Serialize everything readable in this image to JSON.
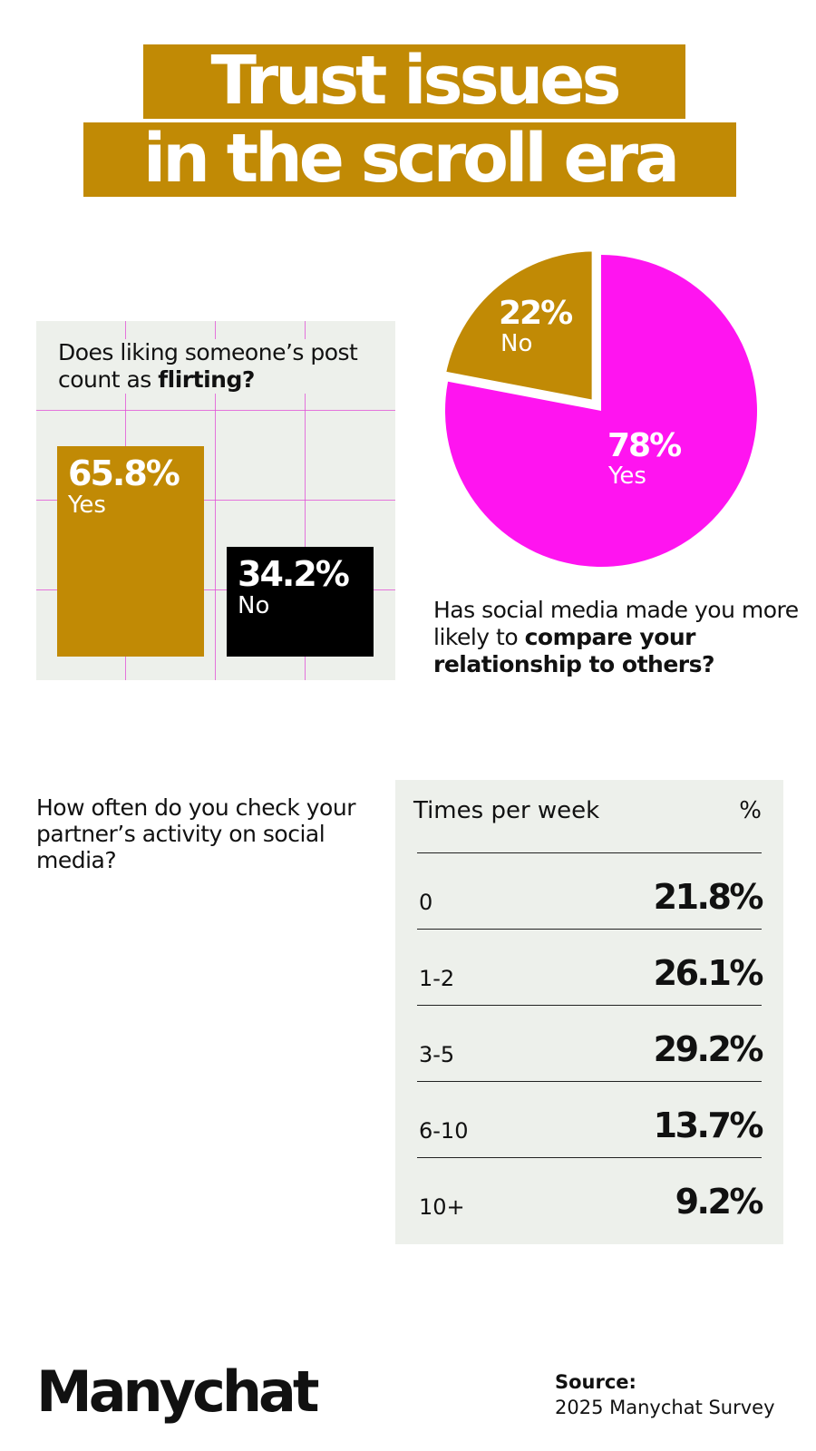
{
  "title": {
    "line1": "Trust issues",
    "line2": "in the scroll era"
  },
  "colors": {
    "gold": "#c18a05",
    "black": "#000000",
    "magenta": "#ff14f0",
    "panel": "#edf0eb",
    "grid": "#e04bd6"
  },
  "chart_data": [
    {
      "type": "bar",
      "question_plain": "Does liking someone’s post count as ",
      "question_bold": "flirting?",
      "categories": [
        "Yes",
        "No"
      ],
      "values": [
        65.8,
        34.2
      ],
      "labels": [
        "65.8%",
        "34.2%"
      ],
      "colors": [
        "#c18a05",
        "#000000"
      ]
    },
    {
      "type": "pie",
      "question_plain": "Has social media made you more likely to ",
      "question_bold": "compare your relationship to others?",
      "categories": [
        "No",
        "Yes"
      ],
      "values": [
        22,
        78
      ],
      "labels": [
        "22%",
        "78%"
      ],
      "colors": [
        "#c18a05",
        "#ff14f0"
      ]
    },
    {
      "type": "table",
      "question": "How often do you check your partner’s activity on social media?",
      "columns": [
        "Times per week",
        "%"
      ],
      "rows": [
        {
          "category": "0",
          "value": "21.8%"
        },
        {
          "category": "1-2",
          "value": "26.1%"
        },
        {
          "category": "3-5",
          "value": "29.2%"
        },
        {
          "category": "6-10",
          "value": "13.7%"
        },
        {
          "category": "10+",
          "value": "9.2%"
        }
      ]
    }
  ],
  "footer": {
    "logo": "Manychat",
    "source_label": "Source:",
    "source_text": "2025 Manychat Survey"
  }
}
